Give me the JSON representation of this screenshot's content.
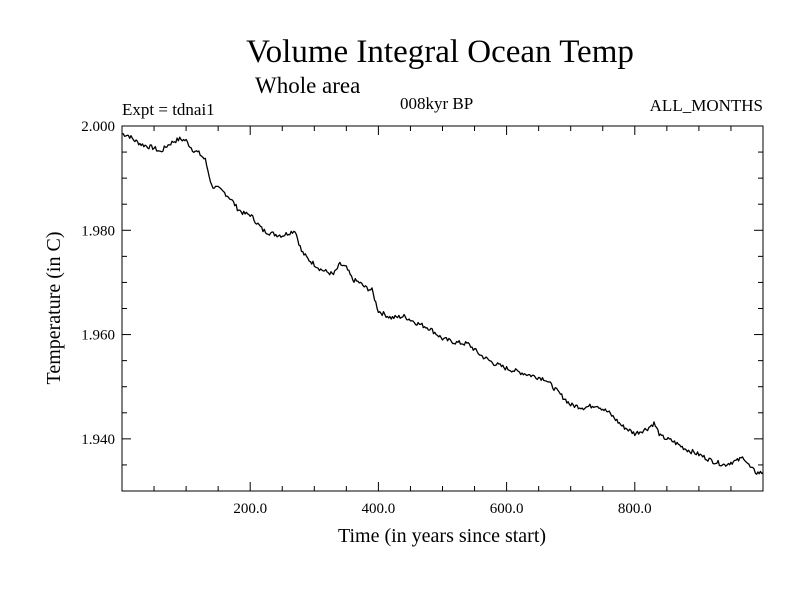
{
  "chart_data": {
    "type": "line",
    "title": "Volume Integral Ocean Temp",
    "subtitle": "Whole area",
    "annotations": {
      "experiment": "Expt = tdnai1",
      "period": "008kyr BP",
      "months": "ALL_MONTHS"
    },
    "xlabel": "Time (in years since start)",
    "ylabel": "Temperature (in C)",
    "xlim": [
      0,
      1000
    ],
    "ylim": [
      1.93,
      2.0
    ],
    "xticks": [
      200,
      400,
      600,
      800
    ],
    "xtick_labels": [
      "200.0",
      "400.0",
      "600.0",
      "800.0"
    ],
    "yticks": [
      1.94,
      1.96,
      1.98,
      2.0
    ],
    "ytick_labels": [
      "1.940",
      "1.960",
      "1.980",
      "2.000"
    ],
    "grid": false,
    "series": [
      {
        "name": "tdnai1",
        "color": "#000000",
        "x": [
          0,
          10,
          20,
          30,
          40,
          50,
          60,
          70,
          80,
          90,
          100,
          110,
          120,
          130,
          140,
          150,
          160,
          170,
          180,
          190,
          200,
          210,
          220,
          230,
          240,
          250,
          260,
          270,
          280,
          290,
          300,
          310,
          320,
          330,
          340,
          350,
          360,
          370,
          380,
          390,
          400,
          420,
          440,
          460,
          480,
          500,
          520,
          540,
          560,
          580,
          600,
          620,
          640,
          660,
          680,
          700,
          720,
          740,
          760,
          780,
          800,
          820,
          830,
          840,
          860,
          880,
          900,
          920,
          940,
          950,
          960,
          970,
          980,
          990,
          1000
        ],
        "y": [
          1.9985,
          1.9982,
          1.9972,
          1.9965,
          1.9961,
          1.9958,
          1.995,
          1.9962,
          1.997,
          1.9975,
          1.9972,
          1.9955,
          1.9948,
          1.9935,
          1.9885,
          1.988,
          1.9872,
          1.986,
          1.9842,
          1.9832,
          1.983,
          1.9815,
          1.98,
          1.9795,
          1.9792,
          1.979,
          1.9795,
          1.98,
          1.976,
          1.9745,
          1.9735,
          1.9725,
          1.972,
          1.9715,
          1.9735,
          1.9728,
          1.9705,
          1.97,
          1.969,
          1.9685,
          1.9645,
          1.9632,
          1.9635,
          1.9622,
          1.9612,
          1.9592,
          1.9585,
          1.9582,
          1.956,
          1.9545,
          1.9535,
          1.9528,
          1.9521,
          1.9515,
          1.949,
          1.9465,
          1.946,
          1.9465,
          1.945,
          1.9425,
          1.941,
          1.942,
          1.943,
          1.9405,
          1.9395,
          1.938,
          1.937,
          1.9358,
          1.935,
          1.9355,
          1.9358,
          1.9365,
          1.9345,
          1.9335,
          1.9335
        ]
      }
    ]
  }
}
